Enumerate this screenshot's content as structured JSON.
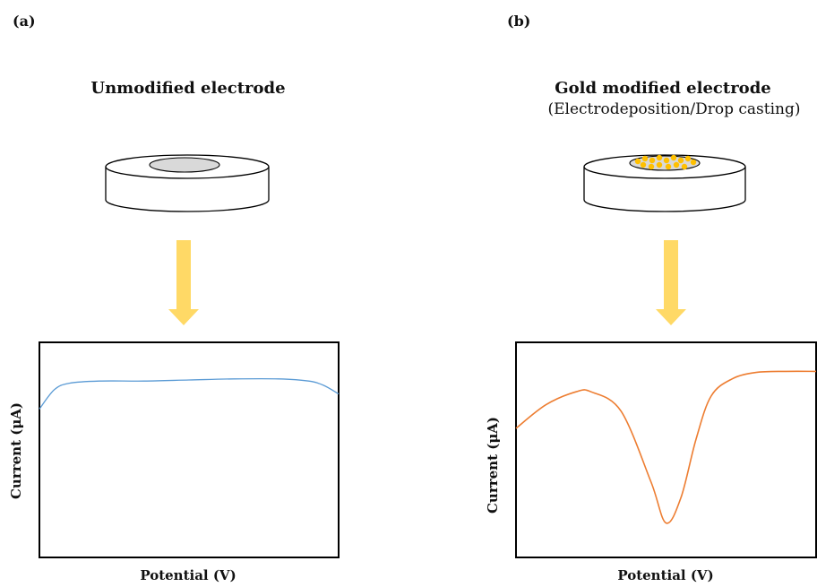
{
  "panels": [
    {
      "label": "(a)",
      "title": "Unmodified electrode",
      "subtitle": "",
      "electrode": "unmodified",
      "chart_data": {
        "type": "line",
        "xlabel": "Potential (V)",
        "ylabel": "Current (μA)",
        "title": "",
        "grid": false,
        "series": [
          {
            "color": "#5b9bd5",
            "shape": "flat",
            "x": [
              0,
              0.05,
              0.1,
              0.2,
              0.35,
              0.5,
              0.65,
              0.8,
              0.9,
              0.95,
              1.0
            ],
            "y": [
              0.69,
              0.78,
              0.81,
              0.82,
              0.82,
              0.825,
              0.83,
              0.83,
              0.82,
              0.8,
              0.76
            ]
          }
        ]
      }
    },
    {
      "label": "(b)",
      "title": "Gold modified electrode",
      "subtitle": "(Electrodeposition/Drop casting)",
      "electrode": "gold-modified",
      "chart_data": {
        "type": "line",
        "xlabel": "Potential (V)",
        "ylabel": "Current (μA)",
        "title": "",
        "grid": false,
        "series": [
          {
            "color": "#ed7d31",
            "shape": "peak-down",
            "x": [
              0,
              0.1,
              0.2,
              0.25,
              0.35,
              0.45,
              0.5,
              0.55,
              0.6,
              0.65,
              0.72,
              0.8,
              0.9,
              1.0
            ],
            "y": [
              0.6,
              0.71,
              0.77,
              0.77,
              0.68,
              0.35,
              0.16,
              0.28,
              0.55,
              0.75,
              0.83,
              0.86,
              0.865,
              0.865
            ]
          }
        ]
      }
    }
  ],
  "colors": {
    "arrow": "#ffd966",
    "gold": "#ffc000",
    "electrode_disc": "#d9d9d9",
    "frame": "#000000"
  }
}
